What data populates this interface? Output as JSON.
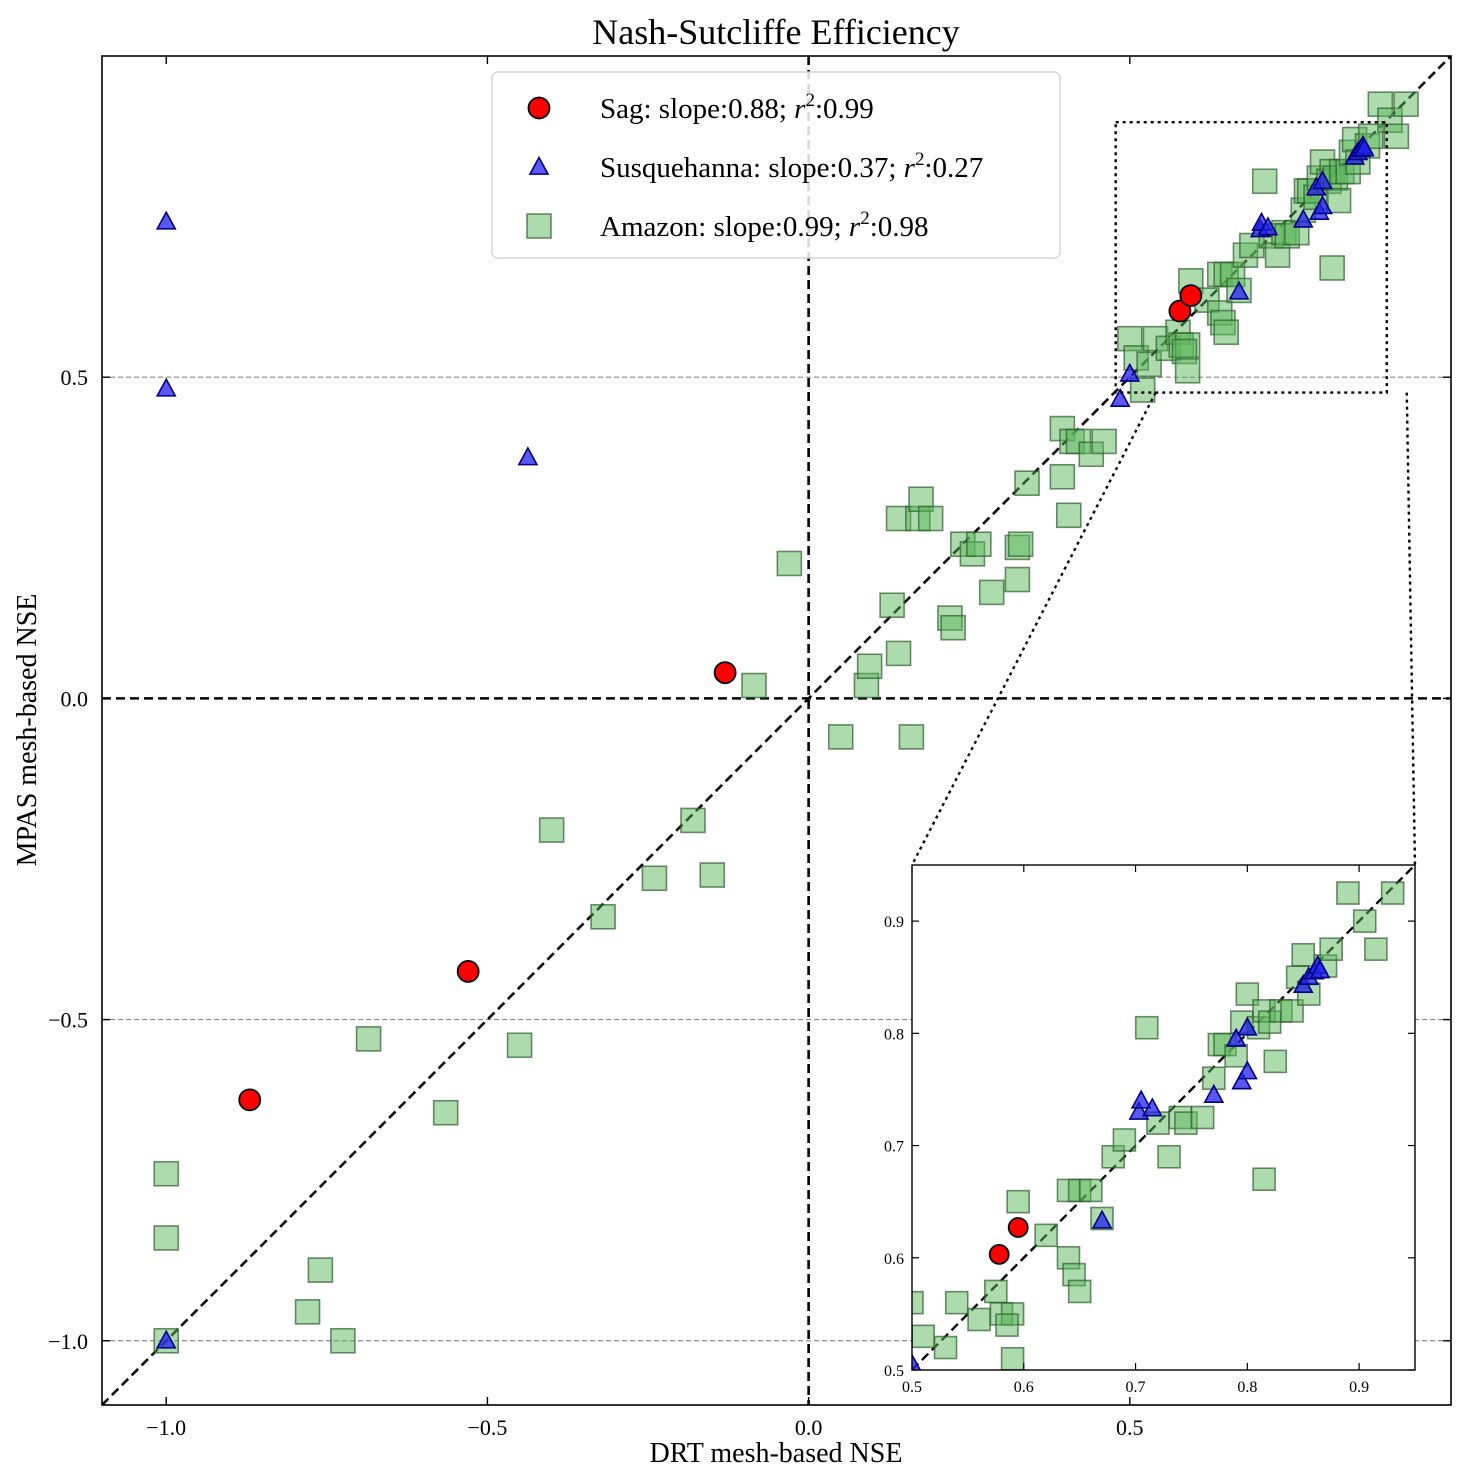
{
  "chart_data": {
    "type": "scatter",
    "title": "Nash-Sutcliffe Efficiency",
    "xlabel": "DRT mesh-based NSE",
    "ylabel": "MPAS mesh-based NSE",
    "xlim": [
      -1.1,
      1.0
    ],
    "ylim": [
      -1.1,
      1.0
    ],
    "xticks": [
      -1.0,
      -0.5,
      0.0,
      0.5
    ],
    "yticks": [
      -1.0,
      -0.5,
      0.0,
      0.5
    ],
    "xtick_labels": [
      "−1.0",
      "−0.5",
      "0.0",
      "0.5"
    ],
    "ytick_labels": [
      "−1.0",
      "−0.5",
      "0.0",
      "0.5"
    ],
    "grid": "horizontal dashed at y ticks",
    "reference_lines": [
      "y = x",
      "x = 0",
      "y = 0"
    ],
    "legend": {
      "placement": "upper-center",
      "entries": [
        {
          "series": "Sag",
          "label": "Sag: slope:0.88; ",
          "r2_symbol": "r",
          "r2_sup": "2",
          "r2_value": ":0.99"
        },
        {
          "series": "Susquehanna",
          "label": "Susquehanna: slope:0.37; ",
          "r2_symbol": "r",
          "r2_sup": "2",
          "r2_value": ":0.27"
        },
        {
          "series": "Amazon",
          "label": "Amazon: slope:0.99; ",
          "r2_symbol": "r",
          "r2_sup": "2",
          "r2_value": ":0.98"
        }
      ]
    },
    "series": [
      {
        "name": "Sag",
        "marker": "circle",
        "color": "#ff0000",
        "edge": "#000000",
        "points": [
          [
            -0.13,
            0.04
          ],
          [
            -0.53,
            -0.425
          ],
          [
            -0.87,
            -0.625
          ],
          [
            0.578,
            0.603
          ],
          [
            0.595,
            0.627
          ]
        ]
      },
      {
        "name": "Susquehanna",
        "marker": "triangle",
        "color": "#2222ee",
        "edge": "#000080",
        "points": [
          [
            -1.0,
            0.742
          ],
          [
            -1.0,
            0.482
          ],
          [
            -0.437,
            0.375
          ],
          [
            -1.0,
            -1.0
          ],
          [
            0.5,
            0.505
          ],
          [
            0.485,
            0.466
          ],
          [
            0.67,
            0.633
          ],
          [
            0.703,
            0.73
          ],
          [
            0.705,
            0.74
          ],
          [
            0.715,
            0.733
          ],
          [
            0.77,
            0.745
          ],
          [
            0.79,
            0.795
          ],
          [
            0.795,
            0.757
          ],
          [
            0.8,
            0.805
          ],
          [
            0.8,
            0.766
          ],
          [
            0.85,
            0.843
          ],
          [
            0.855,
            0.85
          ],
          [
            0.86,
            0.855
          ],
          [
            0.863,
            0.86
          ],
          [
            0.865,
            0.856
          ]
        ]
      },
      {
        "name": "Amazon",
        "marker": "square",
        "color": "#5cb85c",
        "edge": "#2e5e2e",
        "points": [
          [
            -1.0,
            -1.0
          ],
          [
            -1.0,
            -0.74
          ],
          [
            -1.0,
            -0.84
          ],
          [
            -0.78,
            -0.955
          ],
          [
            -0.76,
            -0.89
          ],
          [
            -0.725,
            -1.0
          ],
          [
            -0.685,
            -0.53
          ],
          [
            -0.565,
            -0.645
          ],
          [
            -0.45,
            -0.54
          ],
          [
            -0.4,
            -0.205
          ],
          [
            -0.32,
            -0.34
          ],
          [
            -0.24,
            -0.28
          ],
          [
            -0.18,
            -0.19
          ],
          [
            -0.15,
            -0.275
          ],
          [
            -0.085,
            0.02
          ],
          [
            -0.03,
            0.21
          ],
          [
            0.05,
            -0.06
          ],
          [
            0.09,
            0.02
          ],
          [
            0.095,
            0.05
          ],
          [
            0.14,
            0.07
          ],
          [
            0.16,
            -0.06
          ],
          [
            0.13,
            0.145
          ],
          [
            0.14,
            0.28
          ],
          [
            0.17,
            0.28
          ],
          [
            0.175,
            0.31
          ],
          [
            0.19,
            0.28
          ],
          [
            0.22,
            0.125
          ],
          [
            0.225,
            0.11
          ],
          [
            0.24,
            0.24
          ],
          [
            0.255,
            0.225
          ],
          [
            0.265,
            0.24
          ],
          [
            0.285,
            0.165
          ],
          [
            0.325,
            0.235
          ],
          [
            0.33,
            0.24
          ],
          [
            0.325,
            0.185
          ],
          [
            0.34,
            0.335
          ],
          [
            0.395,
            0.345
          ],
          [
            0.405,
            0.285
          ],
          [
            0.395,
            0.42
          ],
          [
            0.41,
            0.4
          ],
          [
            0.42,
            0.4
          ],
          [
            0.44,
            0.38
          ],
          [
            0.46,
            0.4
          ],
          [
            0.5,
            0.56
          ],
          [
            0.51,
            0.53
          ],
          [
            0.52,
            0.48
          ],
          [
            0.53,
            0.52
          ],
          [
            0.54,
            0.56
          ],
          [
            0.56,
            0.545
          ],
          [
            0.575,
            0.57
          ],
          [
            0.58,
            0.55
          ],
          [
            0.59,
            0.55
          ],
          [
            0.585,
            0.54
          ],
          [
            0.59,
            0.51
          ],
          [
            0.595,
            0.65
          ],
          [
            0.62,
            0.62
          ],
          [
            0.64,
            0.66
          ],
          [
            0.64,
            0.6
          ],
          [
            0.65,
            0.66
          ],
          [
            0.645,
            0.585
          ],
          [
            0.65,
            0.57
          ],
          [
            0.66,
            0.66
          ],
          [
            0.68,
            0.69
          ],
          [
            0.67,
            0.635
          ],
          [
            0.69,
            0.705
          ],
          [
            0.72,
            0.72
          ],
          [
            0.71,
            0.805
          ],
          [
            0.73,
            0.69
          ],
          [
            0.74,
            0.725
          ],
          [
            0.745,
            0.72
          ],
          [
            0.76,
            0.725
          ],
          [
            0.77,
            0.76
          ],
          [
            0.775,
            0.79
          ],
          [
            0.78,
            0.79
          ],
          [
            0.79,
            0.78
          ],
          [
            0.795,
            0.81
          ],
          [
            0.8,
            0.835
          ],
          [
            0.81,
            0.805
          ],
          [
            0.815,
            0.67
          ],
          [
            0.815,
            0.82
          ],
          [
            0.82,
            0.81
          ],
          [
            0.825,
            0.775
          ],
          [
            0.83,
            0.82
          ],
          [
            0.84,
            0.82
          ],
          [
            0.845,
            0.85
          ],
          [
            0.85,
            0.87
          ],
          [
            0.855,
            0.835
          ],
          [
            0.87,
            0.86
          ],
          [
            0.875,
            0.875
          ],
          [
            0.89,
            0.925
          ],
          [
            0.905,
            0.9
          ],
          [
            0.915,
            0.875
          ],
          [
            0.93,
            0.925
          ]
        ]
      }
    ],
    "inset": {
      "xlim": [
        0.5,
        0.95
      ],
      "ylim": [
        0.5,
        0.95
      ],
      "xticks": [
        0.5,
        0.6,
        0.7,
        0.8,
        0.9
      ],
      "yticks": [
        0.5,
        0.6,
        0.7,
        0.8,
        0.9
      ],
      "xtick_labels": [
        "0.5",
        "0.6",
        "0.7",
        "0.8",
        "0.9"
      ],
      "ytick_labels": [
        "0.5",
        "0.6",
        "0.7",
        "0.8",
        "0.9"
      ],
      "zoom_box": {
        "x": [
          0.478,
          0.9
        ],
        "y": [
          0.476,
          0.897
        ]
      }
    }
  }
}
